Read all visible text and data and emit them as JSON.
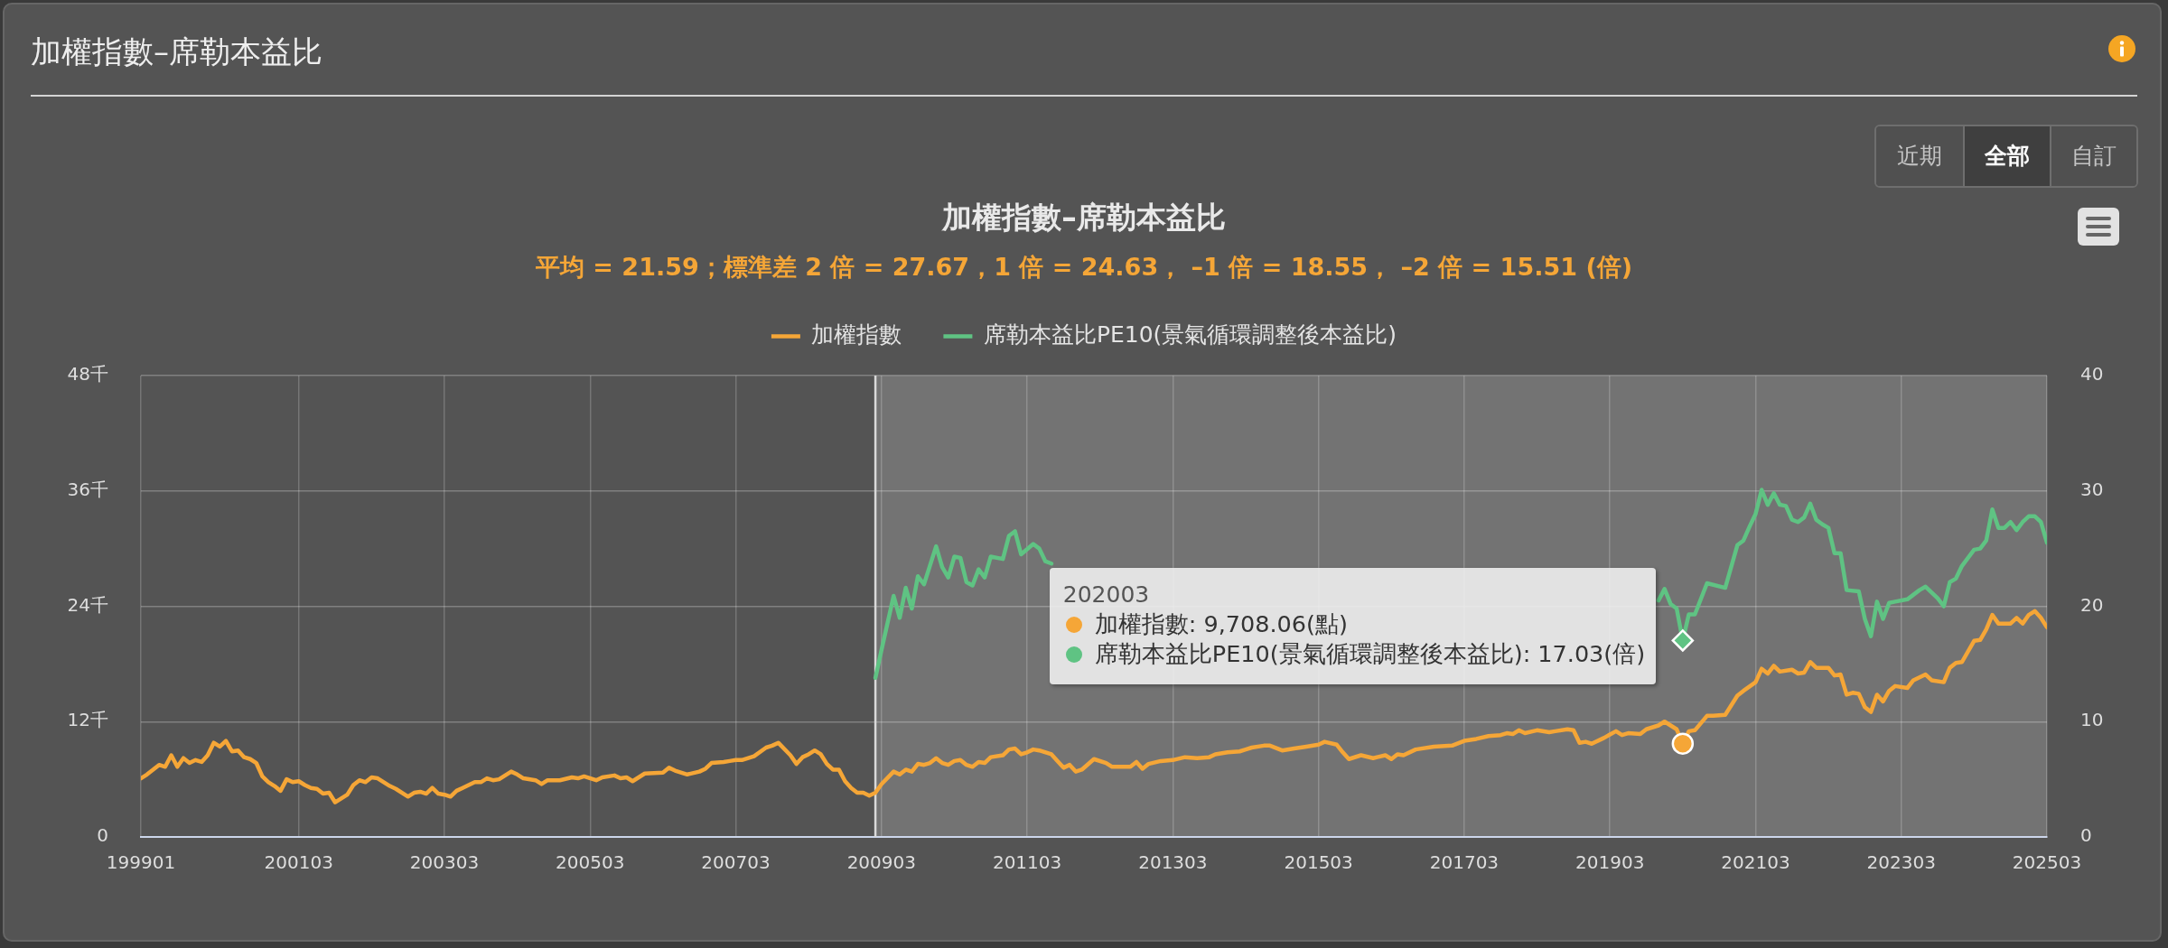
{
  "chart_data": {
    "type": "line",
    "title": "加權指數–席勒本益比",
    "subtitle": "平均 = 21.59；標準差 2 倍 = 27.67，1 倍 = 24.63， –1 倍 = 18.55， –2 倍 = 15.51 (倍)",
    "xlim": [
      "1999-01",
      "2025-03"
    ],
    "xticks": [
      {
        "value": "1999-01",
        "label": "199901"
      },
      {
        "value": "2001-03",
        "label": "200103"
      },
      {
        "value": "2003-03",
        "label": "200303"
      },
      {
        "value": "2005-03",
        "label": "200503"
      },
      {
        "value": "2007-03",
        "label": "200703"
      },
      {
        "value": "2009-03",
        "label": "200903"
      },
      {
        "value": "2011-03",
        "label": "201103"
      },
      {
        "value": "2013-03",
        "label": "201303"
      },
      {
        "value": "2015-03",
        "label": "201503"
      },
      {
        "value": "2017-03",
        "label": "201703"
      },
      {
        "value": "2019-03",
        "label": "201903"
      },
      {
        "value": "2021-03",
        "label": "202103"
      },
      {
        "value": "2023-03",
        "label": "202303"
      },
      {
        "value": "2025-03",
        "label": "202503"
      }
    ],
    "ylim": [
      0,
      48
    ],
    "yticks": [
      0,
      {
        "value": 12,
        "label": "12千"
      },
      {
        "value": 24,
        "label": "24千"
      },
      {
        "value": 36,
        "label": "36千"
      },
      {
        "value": 48,
        "label": "48千"
      }
    ],
    "y2lim": [
      0,
      40
    ],
    "y2ticks": [
      0,
      10,
      20,
      30,
      40
    ],
    "grid": true,
    "legend": "top",
    "bands": [
      {
        "axis": "x",
        "from": "2009-02",
        "to": "2025-03",
        "color": "#737373"
      }
    ],
    "ref_lines": [
      {
        "axis": "x",
        "value": "2009-02",
        "color": "#d9d9d9"
      }
    ],
    "annotations": [
      "加權指數–席勒本益比",
      "近期",
      "全部",
      "自訂",
      "202003",
      "加權指數: 9,708.06(點)",
      "席勒本益比PE10(景氣循環調整後本益比): 17.03(倍)"
    ],
    "series": [
      {
        "name": "加權指數",
        "color": "#f5a637",
        "x": [
          "1999-01",
          "1999-02",
          "1999-04",
          "1999-05",
          "1999-06",
          "1999-07",
          "1999-08",
          "1999-09",
          "1999-10",
          "1999-11",
          "1999-12",
          "2000-01",
          "2000-02",
          "2000-03",
          "2000-04",
          "2000-05",
          "2000-06",
          "2000-07",
          "2000-08",
          "2000-09",
          "2000-10",
          "2000-11",
          "2000-12",
          "2001-01",
          "2001-02",
          "2001-03",
          "2001-04",
          "2001-05",
          "2001-06",
          "2001-07",
          "2001-08",
          "2001-09",
          "2001-10",
          "2001-11",
          "2001-12",
          "2002-01",
          "2002-02",
          "2002-03",
          "2002-04",
          "2002-05",
          "2002-06",
          "2002-07",
          "2002-09",
          "2002-10",
          "2002-11",
          "2002-12",
          "2003-01",
          "2003-02",
          "2003-03",
          "2003-04",
          "2003-05",
          "2003-06",
          "2003-08",
          "2003-09",
          "2003-10",
          "2003-11",
          "2003-12",
          "2004-02",
          "2004-03",
          "2004-04",
          "2004-06",
          "2004-07",
          "2004-08",
          "2004-10",
          "2004-12",
          "2005-01",
          "2005-02",
          "2005-04",
          "2005-05",
          "2005-07",
          "2005-08",
          "2005-09",
          "2005-10",
          "2005-11",
          "2005-12",
          "2006-03",
          "2006-04",
          "2006-05",
          "2006-07",
          "2006-09",
          "2006-10",
          "2006-11",
          "2007-01",
          "2007-02",
          "2007-03",
          "2007-04",
          "2007-06",
          "2007-08",
          "2007-09",
          "2007-10",
          "2007-12",
          "2008-01",
          "2008-02",
          "2008-03",
          "2008-04",
          "2008-05",
          "2008-06",
          "2008-07",
          "2008-08",
          "2008-09",
          "2008-10",
          "2008-11",
          "2008-12",
          "2009-01",
          "2009-02",
          "2009-03",
          "2009-05",
          "2009-06",
          "2009-07",
          "2009-08",
          "2009-09",
          "2009-10",
          "2009-11",
          "2009-12",
          "2010-01",
          "2010-02",
          "2010-03",
          "2010-04",
          "2010-05",
          "2010-06",
          "2010-07",
          "2010-08",
          "2010-09",
          "2010-11",
          "2010-12",
          "2011-01",
          "2011-02",
          "2011-03",
          "2011-04",
          "2011-05",
          "2011-07",
          "2011-08",
          "2011-09",
          "2011-10",
          "2011-11",
          "2011-12",
          "2012-02",
          "2012-04",
          "2012-05",
          "2012-08",
          "2012-09",
          "2012-10",
          "2012-11",
          "2013-01",
          "2013-03",
          "2013-05",
          "2013-07",
          "2013-09",
          "2013-10",
          "2013-12",
          "2014-02",
          "2014-03",
          "2014-04",
          "2014-06",
          "2014-07",
          "2014-09",
          "2014-11",
          "2015-01",
          "2015-03",
          "2015-04",
          "2015-06",
          "2015-07",
          "2015-08",
          "2015-10",
          "2015-12",
          "2016-02",
          "2016-03",
          "2016-04",
          "2016-05",
          "2016-07",
          "2016-10",
          "2017-01",
          "2017-03",
          "2017-05",
          "2017-07",
          "2017-09",
          "2017-10",
          "2017-11",
          "2017-12",
          "2018-01",
          "2018-03",
          "2018-05",
          "2018-06",
          "2018-08",
          "2018-09",
          "2018-10",
          "2018-11",
          "2018-12",
          "2019-02",
          "2019-04",
          "2019-05",
          "2019-06",
          "2019-08",
          "2019-09",
          "2019-11",
          "2019-12",
          "2020-01",
          "2020-02",
          "2020-03",
          "2020-04",
          "2020-05",
          "2020-07",
          "2020-08",
          "2020-10",
          "2020-12",
          "2021-01",
          "2021-03",
          "2021-04",
          "2021-05",
          "2021-06",
          "2021-07",
          "2021-09",
          "2021-10",
          "2021-11",
          "2021-12",
          "2022-01",
          "2022-03",
          "2022-04",
          "2022-05",
          "2022-06",
          "2022-07",
          "2022-08",
          "2022-09",
          "2022-10",
          "2022-11",
          "2022-12",
          "2023-01",
          "2023-02",
          "2023-04",
          "2023-05",
          "2023-07",
          "2023-08",
          "2023-10",
          "2023-11",
          "2023-12",
          "2024-01",
          "2024-03",
          "2024-04",
          "2024-05",
          "2024-06",
          "2024-07",
          "2024-09",
          "2024-10",
          "2024-11",
          "2024-12",
          "2025-01",
          "2025-02",
          "2025-03"
        ],
        "values": [
          6.1,
          6.5,
          7.5,
          7.3,
          8.5,
          7.3,
          8.2,
          7.7,
          8.0,
          7.8,
          8.5,
          9.8,
          9.4,
          10.0,
          8.9,
          9.0,
          8.3,
          8.1,
          7.7,
          6.3,
          5.7,
          5.3,
          4.8,
          6.0,
          5.7,
          5.8,
          5.4,
          5.1,
          5.0,
          4.5,
          4.6,
          3.6,
          4.0,
          4.4,
          5.4,
          5.9,
          5.7,
          6.2,
          6.1,
          5.7,
          5.3,
          5.0,
          4.2,
          4.6,
          4.7,
          4.5,
          5.1,
          4.5,
          4.4,
          4.2,
          4.8,
          5.1,
          5.7,
          5.7,
          6.1,
          5.9,
          6.0,
          6.8,
          6.5,
          6.1,
          5.9,
          5.5,
          5.9,
          5.9,
          6.2,
          6.1,
          6.3,
          5.9,
          6.2,
          6.4,
          6.1,
          6.2,
          5.8,
          6.2,
          6.6,
          6.7,
          7.2,
          6.9,
          6.5,
          6.8,
          7.1,
          7.7,
          7.8,
          7.9,
          8.0,
          8.0,
          8.4,
          9.3,
          9.5,
          9.8,
          8.5,
          7.6,
          8.3,
          8.6,
          9.0,
          8.6,
          7.6,
          7.0,
          7.0,
          5.8,
          5.1,
          4.6,
          4.6,
          4.3,
          4.6,
          5.5,
          6.8,
          6.5,
          7.0,
          6.8,
          7.6,
          7.5,
          7.7,
          8.2,
          7.7,
          7.5,
          7.9,
          8.0,
          7.5,
          7.3,
          7.8,
          7.7,
          8.3,
          8.5,
          9.1,
          9.2,
          8.6,
          8.8,
          9.1,
          9.0,
          8.6,
          7.9,
          7.2,
          7.5,
          6.8,
          7.0,
          8.1,
          7.7,
          7.3,
          7.3,
          7.8,
          7.1,
          7.6,
          7.9,
          8.0,
          8.3,
          8.2,
          8.3,
          8.6,
          8.8,
          8.9,
          9.1,
          9.3,
          9.5,
          9.5,
          9.0,
          9.2,
          9.4,
          9.6,
          9.9,
          9.6,
          8.8,
          8.1,
          8.5,
          8.2,
          8.5,
          8.1,
          8.6,
          8.5,
          9.1,
          9.4,
          9.5,
          10.0,
          10.2,
          10.5,
          10.6,
          10.8,
          10.7,
          11.1,
          10.8,
          11.1,
          10.9,
          11.0,
          11.2,
          11.1,
          9.8,
          9.9,
          9.7,
          10.3,
          11.0,
          10.6,
          10.8,
          10.7,
          11.2,
          11.6,
          12.0,
          11.6,
          11.2,
          9.70806,
          11.0,
          11.1,
          12.6,
          12.6,
          12.7,
          14.7,
          15.2,
          16.1,
          17.5,
          17.0,
          17.8,
          17.2,
          17.4,
          17.0,
          17.1,
          18.2,
          17.6,
          17.6,
          16.8,
          16.9,
          14.8,
          15.0,
          14.9,
          13.5,
          13.0,
          14.8,
          14.1,
          15.2,
          15.7,
          15.5,
          16.3,
          16.9,
          16.3,
          16.1,
          17.6,
          18.1,
          18.2,
          20.4,
          20.5,
          21.6,
          23.1,
          22.2,
          22.2,
          22.8,
          22.2,
          23.1,
          23.5,
          22.8,
          21.8
        ]
      },
      {
        "name": "席勒本益比PE10(景氣循環調整後本益比)",
        "color": "#5fc383",
        "axis": "y2",
        "x": [
          "2009-02",
          "2009-03",
          "2009-05",
          "2009-06",
          "2009-07",
          "2009-08",
          "2009-09",
          "2009-10",
          "2009-12",
          "2010-01",
          "2010-02",
          "2010-03",
          "2010-04",
          "2010-05",
          "2010-06",
          "2010-07",
          "2010-08",
          "2010-09",
          "2010-11",
          "2010-12",
          "2011-01",
          "2011-02",
          "2011-04",
          "2011-05",
          "2011-06",
          "2011-07",
          "2011-09",
          "2011-12",
          "2012-03",
          "2012-06",
          "2012-09",
          "2012-12",
          "2013-03",
          "2013-06",
          "2013-09",
          "2013-12",
          "2014-03",
          "2014-07",
          "2014-11",
          "2015-03",
          "2015-06",
          "2015-09",
          "2016-01",
          "2016-06",
          "2016-10",
          "2017-01",
          "2017-03",
          "2017-06",
          "2017-09",
          "2017-11",
          "2018-01",
          "2018-03",
          "2018-06",
          "2018-08",
          "2018-10",
          "2018-12",
          "2019-02",
          "2019-04",
          "2019-06",
          "2019-09",
          "2019-11",
          "2019-12",
          "2020-01",
          "2020-02",
          "2020-03",
          "2020-04",
          "2020-05",
          "2020-07",
          "2020-10",
          "2020-12",
          "2021-01",
          "2021-02",
          "2021-03",
          "2021-04",
          "2021-05",
          "2021-06",
          "2021-07",
          "2021-08",
          "2021-09",
          "2021-10",
          "2021-11",
          "2021-12",
          "2022-01",
          "2022-02",
          "2022-03",
          "2022-04",
          "2022-05",
          "2022-06",
          "2022-08",
          "2022-09",
          "2022-10",
          "2022-11",
          "2022-12",
          "2023-01",
          "2023-02",
          "2023-04",
          "2023-06",
          "2023-07",
          "2023-09",
          "2023-10",
          "2023-11",
          "2023-12",
          "2024-01",
          "2024-03",
          "2024-04",
          "2024-05",
          "2024-06",
          "2024-07",
          "2024-08",
          "2024-09",
          "2024-10",
          "2024-11",
          "2024-12",
          "2025-01",
          "2025-02",
          "2025-03"
        ],
        "values": [
          13.8,
          16.2,
          20.9,
          19.0,
          21.6,
          19.8,
          22.6,
          21.9,
          25.2,
          23.4,
          22.5,
          24.3,
          24.2,
          22.1,
          21.8,
          23.2,
          22.5,
          24.3,
          24.1,
          26.1,
          26.5,
          24.5,
          25.4,
          25.0,
          23.9,
          23.7,
          null,
          null,
          null,
          null,
          null,
          null,
          null,
          null,
          null,
          null,
          null,
          null,
          null,
          null,
          null,
          null,
          null,
          null,
          null,
          null,
          null,
          null,
          null,
          null,
          null,
          null,
          null,
          null,
          null,
          null,
          null,
          null,
          null,
          null,
          20.5,
          21.5,
          20.2,
          19.8,
          17.03,
          19.3,
          19.3,
          22.0,
          21.6,
          25.3,
          25.7,
          26.9,
          28.0,
          30.1,
          28.8,
          29.8,
          28.8,
          28.7,
          27.5,
          27.3,
          27.7,
          28.9,
          27.5,
          27.1,
          26.8,
          24.6,
          24.6,
          21.4,
          21.3,
          18.9,
          17.4,
          20.4,
          18.9,
          20.3,
          20.4,
          20.6,
          21.4,
          21.7,
          20.7,
          20.0,
          22.1,
          22.4,
          23.5,
          24.9,
          25.0,
          25.7,
          28.4,
          26.8,
          26.8,
          27.3,
          26.6,
          27.3,
          27.8,
          27.8,
          27.3,
          25.5
        ]
      },
      {
        "type": "scatter",
        "color": "#f5a637",
        "marker": "circle",
        "x": [
          "2020-03"
        ],
        "values": [
          9.70806
        ]
      },
      {
        "type": "scatter",
        "color": "#5fc383",
        "marker": "diamond",
        "axis": "y2",
        "x": [
          "2020-03"
        ],
        "values": [
          17.03
        ]
      }
    ]
  }
}
